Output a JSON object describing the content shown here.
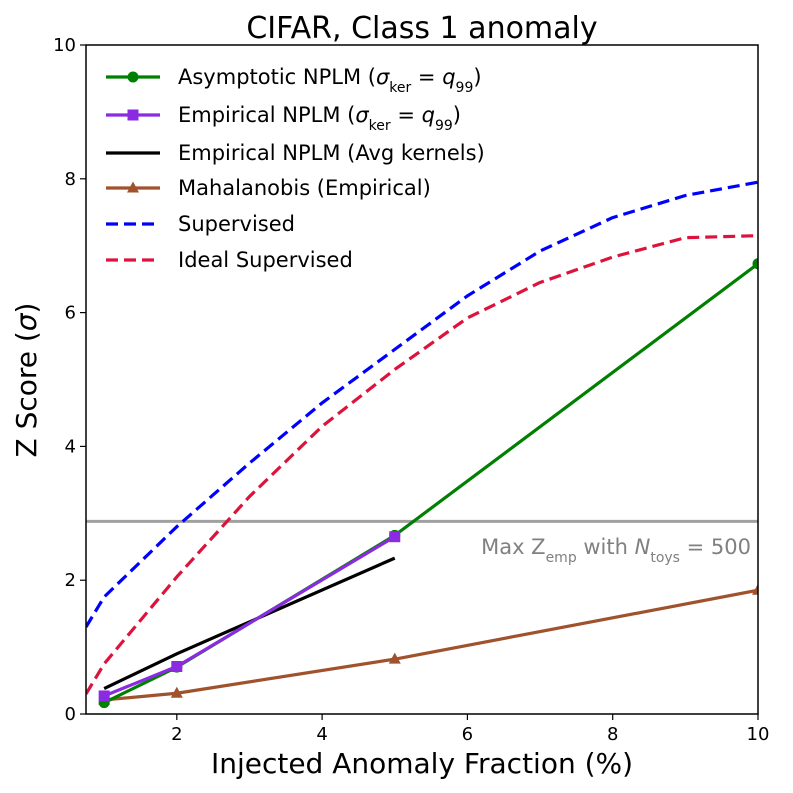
{
  "chart_data": {
    "type": "line",
    "title": "CIFAR, Class 1 anomaly",
    "xlabel": "Injected Anomaly Fraction (%)",
    "ylabel": "Z Score (σ)",
    "xlim": [
      0.75,
      10
    ],
    "ylim": [
      0,
      10
    ],
    "xticks": [
      2,
      4,
      6,
      8,
      10
    ],
    "yticks": [
      0,
      2,
      4,
      6,
      8,
      10
    ],
    "grid": false,
    "legend_position": "top-left",
    "series": [
      {
        "name": "Asymptotic NPLM (σ_ker = q_99)",
        "color": "#008000",
        "style": "solid",
        "marker": "circle",
        "x": [
          1,
          2,
          5,
          10
        ],
        "y": [
          0.17,
          0.7,
          2.67,
          6.73
        ]
      },
      {
        "name": "Empirical NPLM (σ_ker = q_99)",
        "color": "#8a2be2",
        "style": "solid",
        "marker": "square",
        "x": [
          1,
          2,
          5
        ],
        "y": [
          0.27,
          0.71,
          2.65
        ]
      },
      {
        "name": "Empirical NPLM (Avg kernels)",
        "color": "#000000",
        "style": "solid",
        "marker": "none",
        "x": [
          1,
          2,
          5
        ],
        "y": [
          0.38,
          0.9,
          2.33
        ]
      },
      {
        "name": "Mahalanobis (Empirical)",
        "color": "#a0522d",
        "style": "solid",
        "marker": "triangle",
        "x": [
          1,
          2,
          5,
          10
        ],
        "y": [
          0.21,
          0.31,
          0.82,
          1.85
        ]
      },
      {
        "name": "Supervised",
        "color": "#0000ff",
        "style": "dashed",
        "marker": "none",
        "x": [
          0.75,
          1,
          2,
          3,
          4,
          5,
          6,
          7,
          8,
          9,
          10
        ],
        "y": [
          1.3,
          1.75,
          2.8,
          3.75,
          4.65,
          5.45,
          6.25,
          6.92,
          7.42,
          7.75,
          7.95
        ]
      },
      {
        "name": "Ideal Supervised",
        "color": "#dc143c",
        "style": "dashed",
        "marker": "none",
        "x": [
          0.75,
          1,
          2,
          3,
          4,
          5,
          6,
          7,
          8,
          9,
          10
        ],
        "y": [
          0.3,
          0.75,
          2.05,
          3.25,
          4.3,
          5.15,
          5.92,
          6.45,
          6.83,
          7.12,
          7.15
        ]
      }
    ],
    "reference_line": {
      "y": 2.88,
      "color": "#a0a0a0",
      "label": "Max Z_emp with N_toys = 500"
    }
  }
}
